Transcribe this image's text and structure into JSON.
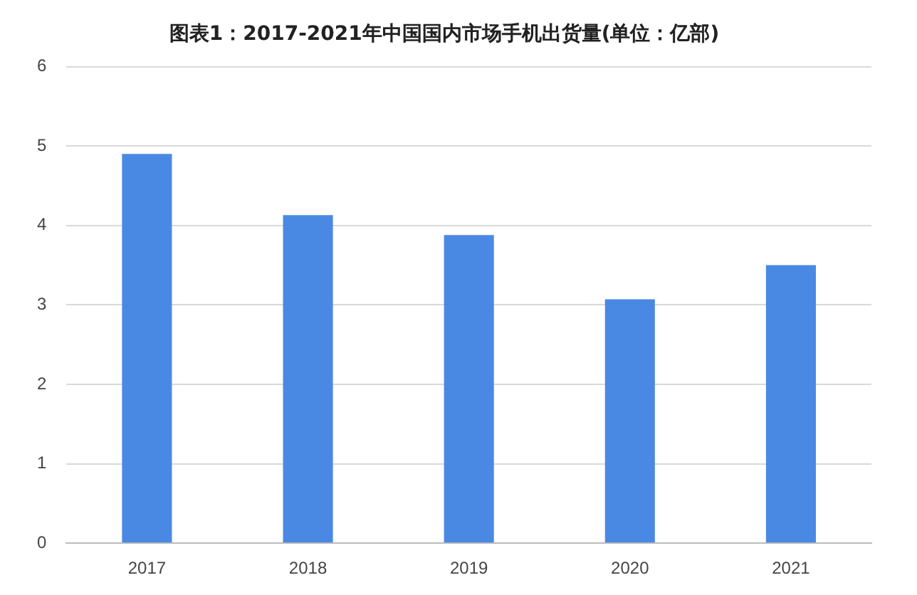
{
  "chart_data": {
    "type": "bar",
    "title": "图表1：2017-2021年中国国内市场手机出货量(单位：亿部)",
    "categories": [
      "2017",
      "2018",
      "2019",
      "2020",
      "2021"
    ],
    "values": [
      4.9,
      4.13,
      3.88,
      3.07,
      3.5
    ],
    "color": "#4a89e3",
    "ylim": [
      0,
      6
    ],
    "yticks": [
      0,
      1,
      2,
      3,
      4,
      5,
      6
    ],
    "grid": "y",
    "legend": false
  }
}
